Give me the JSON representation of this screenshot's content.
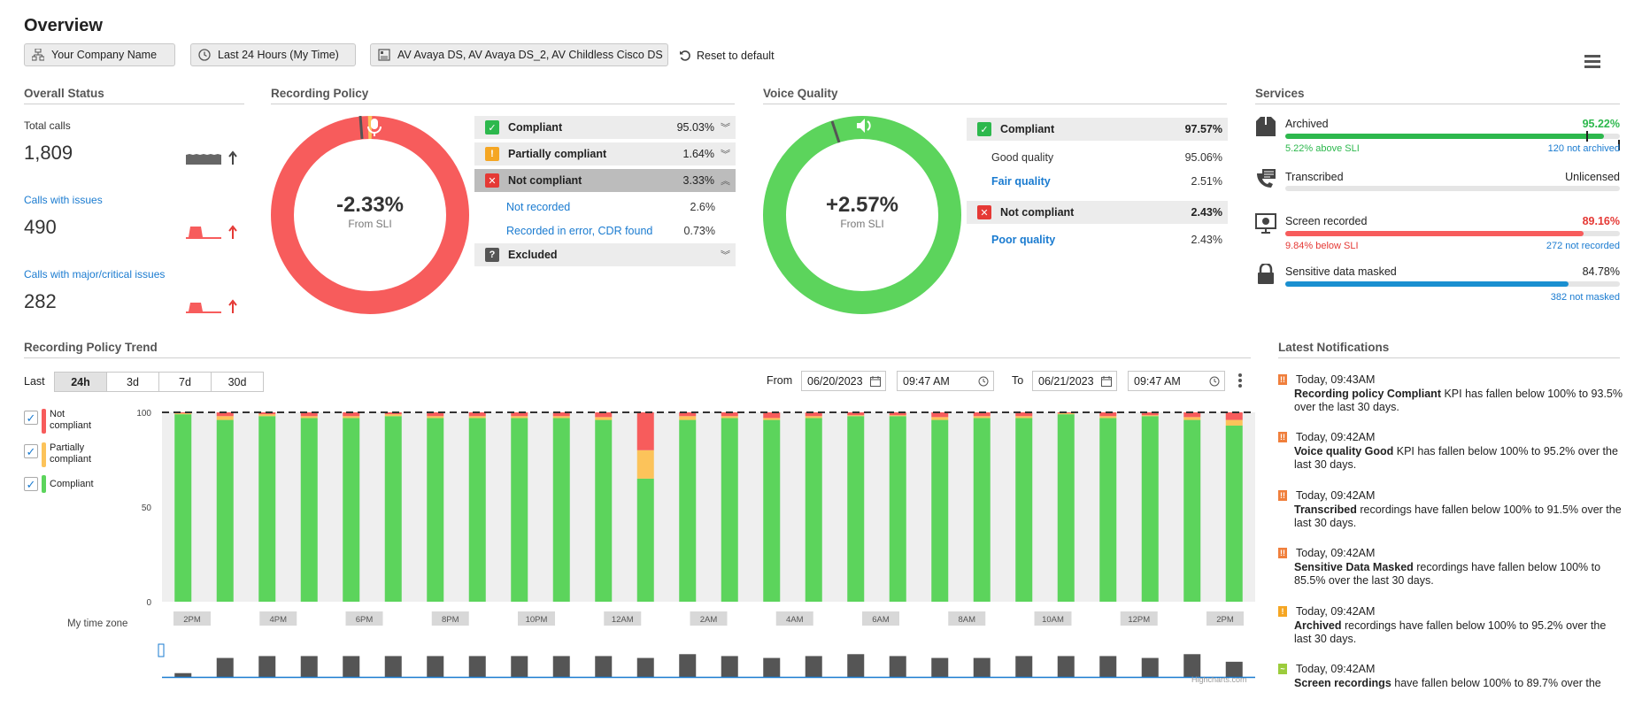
{
  "page": {
    "title": "Overview"
  },
  "filters": {
    "company": "Your Company Name",
    "time_range": "Last 24 Hours (My Time)",
    "sources": "AV Avaya DS, AV Avaya DS_2, AV Childless Cisco DS",
    "reset_label": "Reset to default"
  },
  "overall_status": {
    "title": "Overall Status",
    "items": [
      {
        "label": "Total calls",
        "value": "1,809"
      },
      {
        "label": "Calls with issues",
        "value": "490"
      },
      {
        "label": "Calls with major/critical issues",
        "value": "282"
      }
    ]
  },
  "recording_policy": {
    "title": "Recording Policy",
    "center_value": "-2.33%",
    "center_sub": "From SLI",
    "rows": [
      {
        "label": "Compliant",
        "value": "95.03%"
      },
      {
        "label": "Partially compliant",
        "value": "1.64%"
      },
      {
        "label": "Not compliant",
        "value": "3.33%"
      }
    ],
    "sub_rows": [
      {
        "label": "Not recorded",
        "value": "2.6%"
      },
      {
        "label": "Recorded in error, CDR found",
        "value": "0.73%"
      }
    ],
    "excluded_label": "Excluded"
  },
  "voice_quality": {
    "title": "Voice Quality",
    "center_value": "+2.57%",
    "center_sub": "From SLI",
    "compliant": {
      "label": "Compliant",
      "value": "97.57%"
    },
    "good": {
      "label": "Good quality",
      "value": "95.06%"
    },
    "fair": {
      "label": "Fair quality",
      "value": "2.51%"
    },
    "not_compliant": {
      "label": "Not compliant",
      "value": "2.43%"
    },
    "poor": {
      "label": "Poor quality",
      "value": "2.43%"
    }
  },
  "services": {
    "title": "Services",
    "archived": {
      "label": "Archived",
      "pct": "95.22%",
      "fill": 0.9522,
      "left_note": "5.22% above SLI",
      "right_note": "120 not archived"
    },
    "transcribed": {
      "label": "Transcribed",
      "status": "Unlicensed"
    },
    "screen": {
      "label": "Screen recorded",
      "pct": "89.16%",
      "fill": 0.8916,
      "left_note": "9.84% below SLI",
      "right_note": "272 not recorded"
    },
    "masked": {
      "label": "Sensitive data masked",
      "pct": "84.78%",
      "fill": 0.8478,
      "right_note": "382 not masked"
    }
  },
  "trend": {
    "title": "Recording Policy Trend",
    "last_label": "Last",
    "ranges": [
      "24h",
      "3d",
      "7d",
      "30d"
    ],
    "from_label": "From",
    "from_date": "06/20/2023",
    "from_time": "09:47 AM",
    "to_label": "To",
    "to_date": "06/21/2023",
    "to_time": "09:47 AM",
    "timezone_label": "My time zone",
    "credit": "Highcharts.com",
    "legend": [
      {
        "label": "Not compliant",
        "color": "#f75c5c"
      },
      {
        "label": "Partially compliant",
        "color": "#fcc35a"
      },
      {
        "label": "Compliant",
        "color": "#5cd45c"
      }
    ]
  },
  "chart_data": {
    "type": "bar",
    "stacked": true,
    "ylim": [
      0,
      100
    ],
    "yticks": [
      0,
      50,
      100
    ],
    "reference_line": 100,
    "xticks": [
      "2PM",
      "4PM",
      "6PM",
      "8PM",
      "10PM",
      "12AM",
      "2AM",
      "4AM",
      "6AM",
      "8AM",
      "10AM",
      "12PM",
      "2PM"
    ],
    "series": [
      {
        "name": "Compliant",
        "values": [
          99,
          96,
          98,
          97,
          97,
          98,
          97,
          97,
          97,
          97,
          96,
          65,
          96,
          97,
          96,
          97,
          98,
          98,
          96,
          97,
          97,
          99,
          97,
          98,
          96,
          93
        ]
      },
      {
        "name": "Partially compliant",
        "values": [
          0.5,
          2,
          1,
          1,
          1,
          1,
          1,
          1,
          1,
          1,
          1.5,
          15,
          2,
          1,
          1,
          1,
          0.5,
          0.5,
          1.5,
          1,
          1,
          0.5,
          1,
          0.5,
          1.5,
          3
        ]
      },
      {
        "name": "Not compliant",
        "values": [
          0.5,
          2,
          1,
          2,
          2,
          1,
          2,
          2,
          2,
          2,
          2.5,
          20,
          2,
          2,
          3,
          2,
          1.5,
          1.5,
          2.5,
          2,
          2,
          0.5,
          2,
          1.5,
          2.5,
          4
        ]
      }
    ],
    "navigator_values": [
      2,
      10,
      11,
      11,
      11,
      11,
      11,
      11,
      11,
      11,
      11,
      10,
      12,
      11,
      10,
      11,
      12,
      11,
      10,
      10,
      11,
      11,
      11,
      10,
      12,
      8
    ]
  },
  "notifications": {
    "title": "Latest Notifications",
    "items": [
      {
        "time": "Today, 09:43AM",
        "bold": "Recording policy Compliant",
        "text": " KPI has fallen below 100% to 93.5% over the last 30 days.",
        "color": "#f07f3c",
        "glyph": "!!"
      },
      {
        "time": "Today, 09:42AM",
        "bold": "Voice quality Good",
        "text": " KPI has fallen below 100% to 95.2% over the last 30 days.",
        "color": "#f07f3c",
        "glyph": "!!"
      },
      {
        "time": "Today, 09:42AM",
        "bold": "Transcribed",
        "text": " recordings have fallen below 100% to 91.5% over the last 30 days.",
        "color": "#f07f3c",
        "glyph": "!!"
      },
      {
        "time": "Today, 09:42AM",
        "bold": "Sensitive Data Masked",
        "text": " recordings have fallen below 100% to 85.5% over the last 30 days.",
        "color": "#f07f3c",
        "glyph": "!!"
      },
      {
        "time": "Today, 09:42AM",
        "bold": "Archived",
        "text": " recordings have fallen below 100% to 95.2% over the last 30 days.",
        "color": "#f5a623",
        "glyph": "!"
      },
      {
        "time": "Today, 09:42AM",
        "bold": "Screen recordings",
        "text": " have fallen below 100% to 89.7% over the",
        "color": "#9ccc3c",
        "glyph": "~"
      }
    ]
  }
}
